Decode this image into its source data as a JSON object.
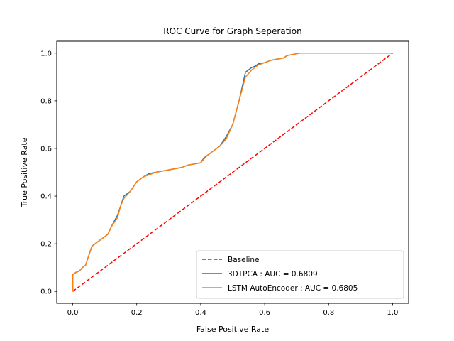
{
  "chart_data": {
    "type": "line",
    "title": "ROC Curve for Graph Seperation",
    "xlabel": "False Positive Rate",
    "ylabel": "True Positive Rate",
    "xlim": [
      -0.05,
      1.05
    ],
    "ylim": [
      -0.05,
      1.05
    ],
    "xticks": [
      "0.0",
      "0.2",
      "0.4",
      "0.6",
      "0.8",
      "1.0"
    ],
    "yticks": [
      "0.0",
      "0.2",
      "0.4",
      "0.6",
      "0.8",
      "1.0"
    ],
    "grid": false,
    "legend_position": "lower-right",
    "series": [
      {
        "name": "Baseline",
        "color": "#ff0000",
        "style": "dashed",
        "x": [
          0.0,
          1.0
        ],
        "y": [
          0.0,
          1.0
        ]
      },
      {
        "name": "3DTPCA : AUC = 0.6809",
        "color": "#1f77b4",
        "style": "solid",
        "x": [
          0.0,
          0.0,
          0.01,
          0.02,
          0.03,
          0.04,
          0.05,
          0.06,
          0.07,
          0.09,
          0.11,
          0.12,
          0.14,
          0.15,
          0.16,
          0.18,
          0.19,
          0.2,
          0.22,
          0.24,
          0.26,
          0.28,
          0.3,
          0.32,
          0.34,
          0.36,
          0.38,
          0.4,
          0.41,
          0.42,
          0.44,
          0.46,
          0.48,
          0.5,
          0.52,
          0.54,
          0.56,
          0.57,
          0.58,
          0.6,
          0.62,
          0.64,
          0.66,
          0.67,
          0.69,
          0.71,
          0.8,
          0.9,
          1.0
        ],
        "y": [
          0.0,
          0.07,
          0.08,
          0.085,
          0.1,
          0.11,
          0.15,
          0.19,
          0.2,
          0.22,
          0.24,
          0.27,
          0.32,
          0.36,
          0.4,
          0.42,
          0.44,
          0.46,
          0.48,
          0.495,
          0.5,
          0.505,
          0.51,
          0.515,
          0.52,
          0.53,
          0.535,
          0.54,
          0.56,
          0.57,
          0.59,
          0.61,
          0.65,
          0.7,
          0.8,
          0.92,
          0.94,
          0.945,
          0.955,
          0.96,
          0.97,
          0.975,
          0.98,
          0.99,
          0.995,
          1.0,
          1.0,
          1.0,
          1.0
        ]
      },
      {
        "name": "LSTM AutoEncoder : AUC = 0.6805",
        "color": "#ff7f0e",
        "style": "solid",
        "x": [
          0.0,
          0.0,
          0.01,
          0.02,
          0.03,
          0.04,
          0.05,
          0.06,
          0.07,
          0.09,
          0.11,
          0.12,
          0.14,
          0.15,
          0.16,
          0.18,
          0.19,
          0.2,
          0.22,
          0.24,
          0.26,
          0.28,
          0.3,
          0.32,
          0.34,
          0.36,
          0.38,
          0.4,
          0.41,
          0.42,
          0.44,
          0.46,
          0.48,
          0.5,
          0.52,
          0.54,
          0.56,
          0.57,
          0.58,
          0.6,
          0.62,
          0.64,
          0.66,
          0.67,
          0.69,
          0.71,
          0.8,
          0.9,
          1.0
        ],
        "y": [
          0.0,
          0.07,
          0.08,
          0.085,
          0.1,
          0.11,
          0.15,
          0.19,
          0.2,
          0.22,
          0.24,
          0.27,
          0.31,
          0.36,
          0.39,
          0.42,
          0.44,
          0.46,
          0.48,
          0.49,
          0.5,
          0.505,
          0.51,
          0.515,
          0.52,
          0.53,
          0.535,
          0.54,
          0.555,
          0.57,
          0.59,
          0.61,
          0.64,
          0.7,
          0.8,
          0.9,
          0.93,
          0.94,
          0.95,
          0.96,
          0.97,
          0.975,
          0.98,
          0.99,
          0.995,
          1.0,
          1.0,
          1.0,
          1.0
        ]
      }
    ]
  }
}
